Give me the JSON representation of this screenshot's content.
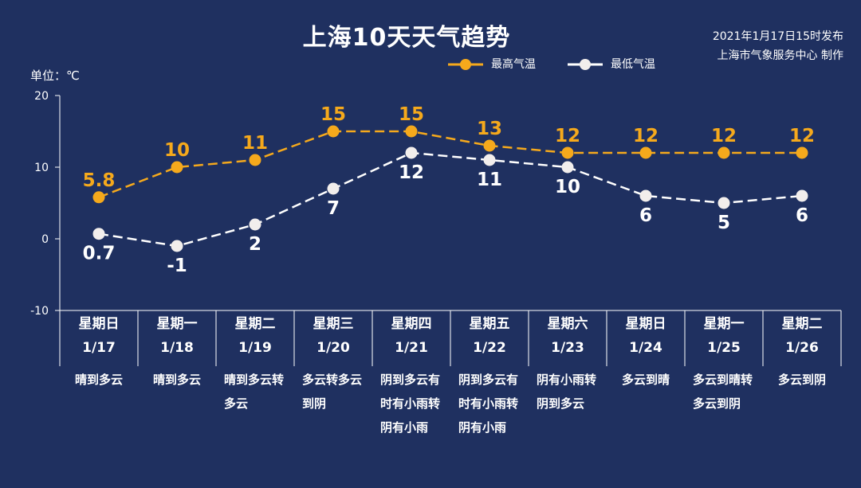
{
  "header": {
    "title": "上海10天天气趋势",
    "publish_line1": "2021年1月17日15时发布",
    "publish_line2": "上海市气象服务中心 制作",
    "unit": "单位：℃"
  },
  "colors": {
    "background": "#1f3060",
    "high": "#f5a91c",
    "low": "#ffffff",
    "axis": "#ffffff"
  },
  "chart_data": {
    "type": "line",
    "title": "上海10天天气趋势",
    "ylabel": "单位：℃",
    "ylim": [
      -10,
      20
    ],
    "yticks": [
      -10,
      0,
      10,
      20
    ],
    "grid": false,
    "legend": "top-center",
    "days": [
      {
        "weekday": "星期日",
        "date": "1/17",
        "weather": "晴到多云"
      },
      {
        "weekday": "星期一",
        "date": "1/18",
        "weather": "晴到多云"
      },
      {
        "weekday": "星期二",
        "date": "1/19",
        "weather": "晴到多云转多云"
      },
      {
        "weekday": "星期三",
        "date": "1/20",
        "weather": "多云转多云到阴"
      },
      {
        "weekday": "星期四",
        "date": "1/21",
        "weather": "阴到多云有时有小雨转阴有小雨"
      },
      {
        "weekday": "星期五",
        "date": "1/22",
        "weather": "阴到多云有时有小雨转阴有小雨"
      },
      {
        "weekday": "星期六",
        "date": "1/23",
        "weather": "阴有小雨转阴到多云"
      },
      {
        "weekday": "星期日",
        "date": "1/24",
        "weather": "多云到晴"
      },
      {
        "weekday": "星期一",
        "date": "1/25",
        "weather": "多云到晴转多云到阴"
      },
      {
        "weekday": "星期二",
        "date": "1/26",
        "weather": "多云到阴"
      }
    ],
    "series": [
      {
        "name": "最高气温",
        "values": [
          5.8,
          10,
          11,
          15,
          15,
          13,
          12,
          12,
          12,
          12
        ],
        "labels": [
          "5.8",
          "10",
          "11",
          "15",
          "15",
          "13",
          "12",
          "12",
          "12",
          "12"
        ]
      },
      {
        "name": "最低气温",
        "values": [
          0.7,
          -1,
          2,
          7,
          12,
          11,
          10,
          6,
          5,
          6
        ],
        "labels": [
          "0.7",
          "-1",
          "2",
          "7",
          "12",
          "11",
          "10",
          "6",
          "5",
          "6"
        ]
      }
    ]
  }
}
